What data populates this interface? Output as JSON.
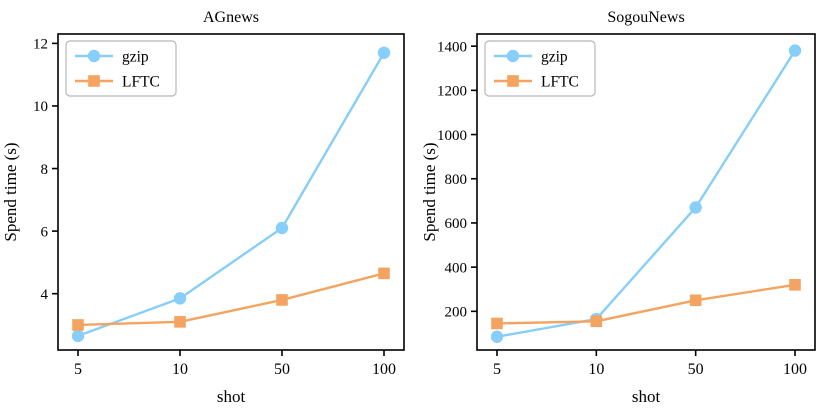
{
  "figure": {
    "background": "#ffffff",
    "axis_color": "#000000",
    "legend_border_color": "#b7b7b7"
  },
  "chart_data": [
    {
      "type": "line",
      "title": "AGnews",
      "xlabel": "shot",
      "ylabel": "Spend time (s)",
      "categories": [
        "5",
        "10",
        "50",
        "100"
      ],
      "series": [
        {
          "name": "gzip",
          "color": "#87CEFA",
          "marker": "circle",
          "values": [
            2.65,
            3.85,
            6.1,
            11.7
          ]
        },
        {
          "name": "LFTC",
          "color": "#F4A460",
          "marker": "square",
          "values": [
            3.0,
            3.1,
            3.8,
            4.65
          ]
        }
      ],
      "ylim": [
        2.2,
        12.3
      ],
      "yticks": [
        4,
        6,
        8,
        10,
        12
      ],
      "grid": false,
      "legend_position": "upper left"
    },
    {
      "type": "line",
      "title": "SogouNews",
      "xlabel": "shot",
      "ylabel": "Spend time (s)",
      "categories": [
        "5",
        "10",
        "50",
        "100"
      ],
      "series": [
        {
          "name": "gzip",
          "color": "#87CEFA",
          "marker": "circle",
          "values": [
            85,
            165,
            670,
            1380
          ]
        },
        {
          "name": "LFTC",
          "color": "#F4A460",
          "marker": "square",
          "values": [
            145,
            155,
            250,
            320
          ]
        }
      ],
      "ylim": [
        25,
        1455
      ],
      "yticks": [
        200,
        400,
        600,
        800,
        1000,
        1200,
        1400
      ],
      "grid": false,
      "legend_position": "upper left"
    }
  ]
}
